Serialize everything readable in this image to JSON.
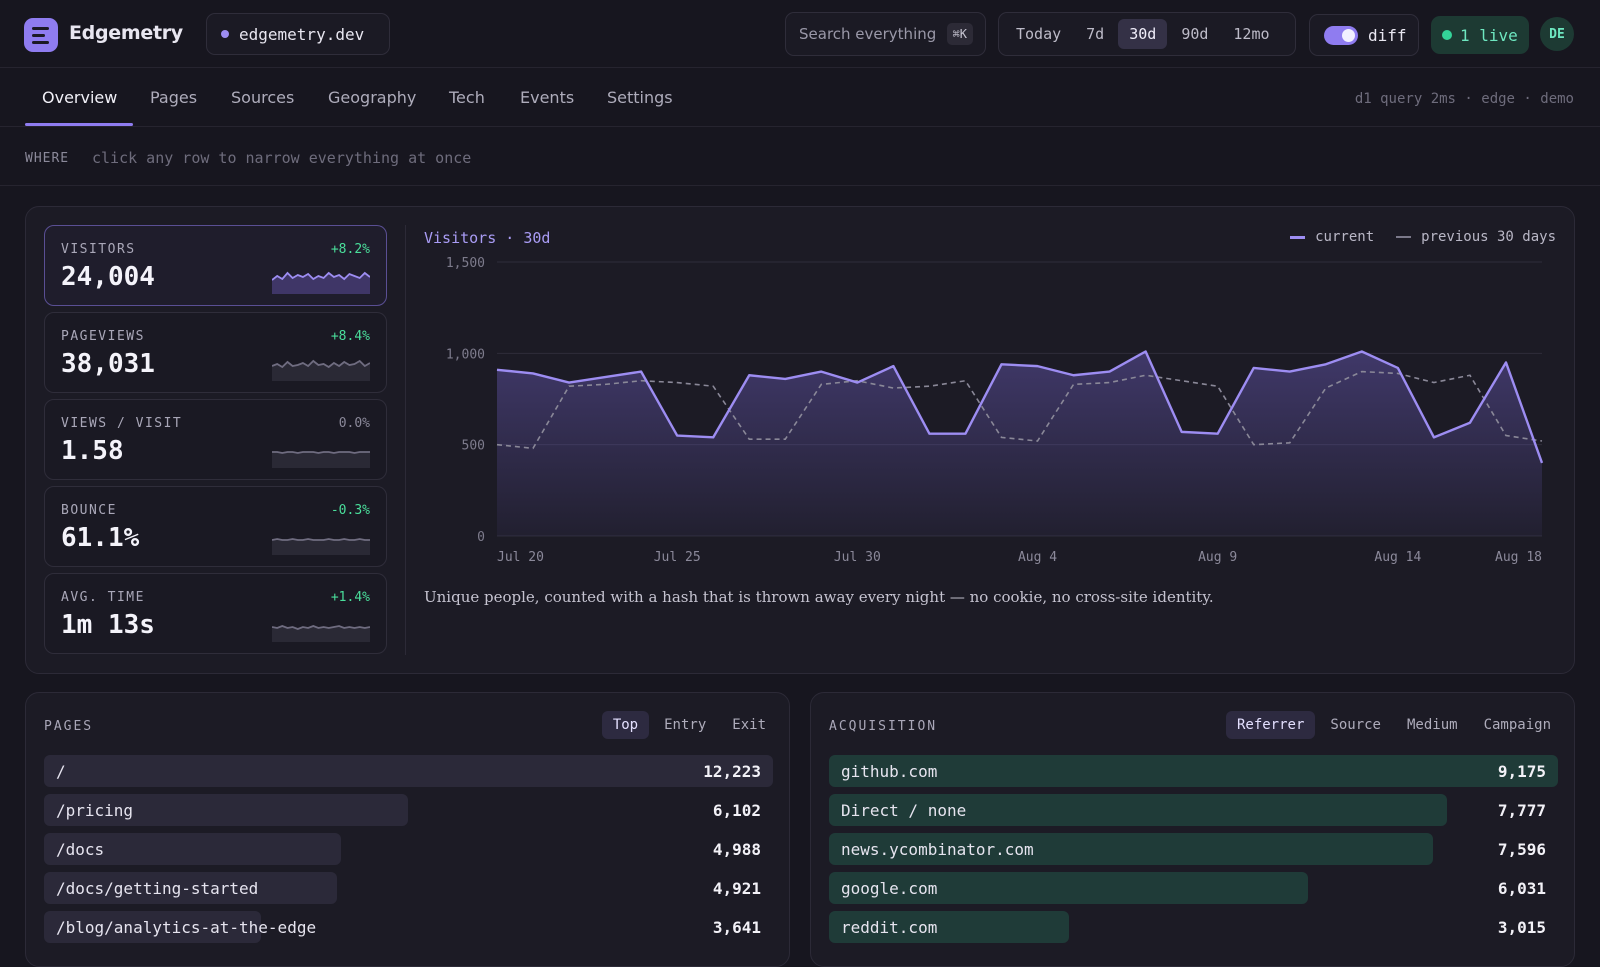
{
  "app": {
    "name": "Edgemetry",
    "site": "edgemetry.dev"
  },
  "search": {
    "placeholder": "Search everything",
    "shortcut": "⌘K"
  },
  "ranges": [
    {
      "label": "Today"
    },
    {
      "label": "7d"
    },
    {
      "label": "30d",
      "active": true
    },
    {
      "label": "90d"
    },
    {
      "label": "12mo"
    }
  ],
  "diff": {
    "label": "diff",
    "enabled": true
  },
  "live": {
    "label": "1 live"
  },
  "user": {
    "initials": "DE"
  },
  "tabs": [
    {
      "label": "Overview",
      "active": true
    },
    {
      "label": "Pages"
    },
    {
      "label": "Sources"
    },
    {
      "label": "Geography"
    },
    {
      "label": "Tech"
    },
    {
      "label": "Events"
    },
    {
      "label": "Settings"
    }
  ],
  "meta": "d1 query 2ms · edge · demo",
  "where": {
    "label": "WHERE",
    "hint": "click any row to narrow everything at once"
  },
  "kpis": [
    {
      "label": "VISITORS",
      "value": "24,004",
      "delta": "+8.2%",
      "selected": true
    },
    {
      "label": "PAGEVIEWS",
      "value": "38,031",
      "delta": "+8.4%"
    },
    {
      "label": "VIEWS / VISIT",
      "value": "1.58",
      "delta": "0.0%"
    },
    {
      "label": "BOUNCE",
      "value": "61.1%",
      "delta": "-0.3%"
    },
    {
      "label": "AVG. TIME",
      "value": "1m 13s",
      "delta": "+1.4%"
    }
  ],
  "chart_data": {
    "type": "area",
    "title": "Visitors · 30d",
    "x": [
      "Jul 20",
      "Jul 21",
      "Jul 22",
      "Jul 23",
      "Jul 24",
      "Jul 25",
      "Jul 26",
      "Jul 27",
      "Jul 28",
      "Jul 29",
      "Jul 30",
      "Jul 31",
      "Aug 1",
      "Aug 2",
      "Aug 3",
      "Aug 4",
      "Aug 5",
      "Aug 6",
      "Aug 7",
      "Aug 8",
      "Aug 9",
      "Aug 10",
      "Aug 11",
      "Aug 12",
      "Aug 13",
      "Aug 14",
      "Aug 15",
      "Aug 16",
      "Aug 17",
      "Aug 18"
    ],
    "xticks": [
      "Jul 20",
      "Jul 25",
      "Jul 30",
      "Aug 4",
      "Aug 9",
      "Aug 14",
      "Aug 18"
    ],
    "series": [
      {
        "name": "current",
        "values": [
          910,
          890,
          840,
          870,
          900,
          550,
          540,
          880,
          860,
          900,
          840,
          930,
          560,
          560,
          940,
          930,
          880,
          900,
          1010,
          570,
          560,
          920,
          900,
          940,
          1010,
          920,
          540,
          620,
          950,
          400
        ]
      },
      {
        "name": "previous 30 days",
        "values": [
          500,
          480,
          820,
          830,
          850,
          840,
          820,
          530,
          530,
          830,
          850,
          810,
          820,
          850,
          540,
          520,
          830,
          840,
          880,
          850,
          820,
          500,
          510,
          810,
          900,
          890,
          840,
          880,
          550,
          520
        ]
      }
    ],
    "ylim": [
      0,
      1500
    ],
    "yticks": [
      0,
      500,
      1000,
      1500
    ],
    "legend": "top-right",
    "grid": true
  },
  "caption": "Unique people, counted with a hash that is thrown away every night — no cookie, no cross-site identity.",
  "pages": {
    "title": "PAGES",
    "tabs": [
      {
        "label": "Top",
        "active": true
      },
      {
        "label": "Entry"
      },
      {
        "label": "Exit"
      }
    ],
    "rows": [
      {
        "label": "/",
        "value": 12223,
        "display": "12,223"
      },
      {
        "label": "/pricing",
        "value": 6102,
        "display": "6,102"
      },
      {
        "label": "/docs",
        "value": 4988,
        "display": "4,988"
      },
      {
        "label": "/docs/getting-started",
        "value": 4921,
        "display": "4,921"
      },
      {
        "label": "/blog/analytics-at-the-edge",
        "value": 3641,
        "display": "3,641"
      }
    ]
  },
  "acquisition": {
    "title": "ACQUISITION",
    "tabs": [
      {
        "label": "Referrer",
        "active": true
      },
      {
        "label": "Source"
      },
      {
        "label": "Medium"
      },
      {
        "label": "Campaign"
      }
    ],
    "rows": [
      {
        "label": "github.com",
        "value": 9175,
        "display": "9,175"
      },
      {
        "label": "Direct / none",
        "value": 7777,
        "display": "7,777"
      },
      {
        "label": "news.ycombinator.com",
        "value": 7596,
        "display": "7,596"
      },
      {
        "label": "google.com",
        "value": 6031,
        "display": "6,031"
      },
      {
        "label": "reddit.com",
        "value": 3015,
        "display": "3,015"
      }
    ]
  },
  "colors": {
    "accent": "#9d8df2",
    "positive": "#4ade9b",
    "live": "#34d399"
  }
}
